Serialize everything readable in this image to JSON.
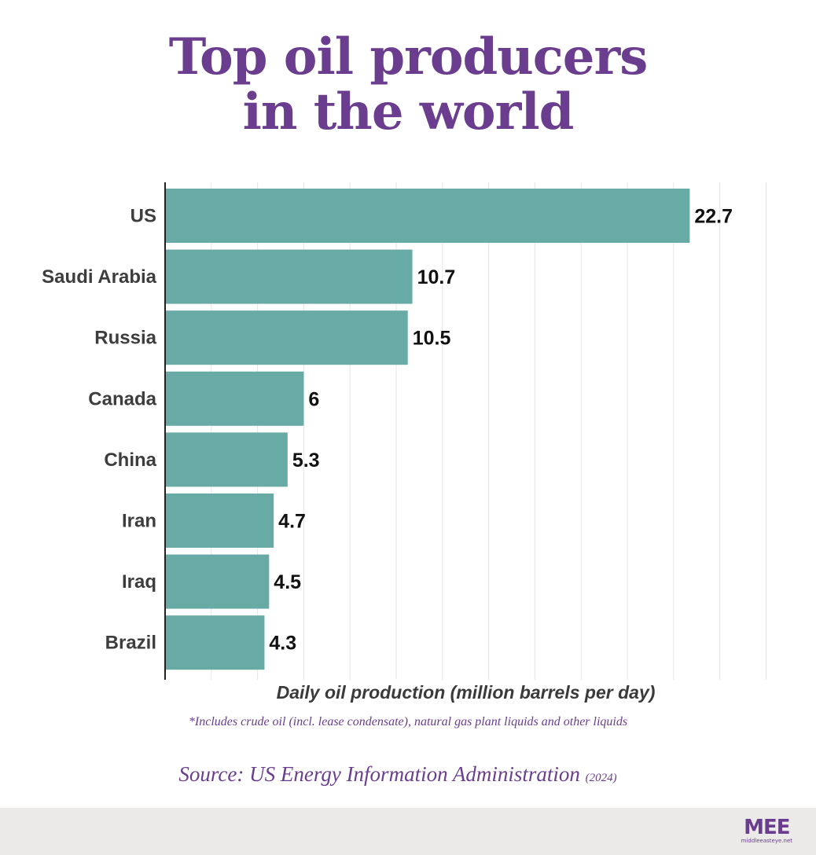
{
  "title_line1": "Top oil producers",
  "title_line2": "in the world",
  "chart_data": {
    "type": "bar",
    "orientation": "horizontal",
    "categories": [
      "US",
      "Saudi Arabia",
      "Russia",
      "Canada",
      "China",
      "Iran",
      "Iraq",
      "Brazil"
    ],
    "values": [
      22.7,
      10.7,
      10.5,
      6,
      5.3,
      4.7,
      4.5,
      4.3
    ],
    "value_labels": [
      "22.7",
      "10.7",
      "10.5",
      "6",
      "5.3",
      "4.7",
      "4.5",
      "4.3"
    ],
    "xlabel": "Daily oil production (million barrels per day)",
    "xlim": [
      0,
      26
    ],
    "grid": true,
    "bar_color": "#67aaa6"
  },
  "footnote": "*Includes crude oil (incl. lease condensate), natural gas plant liquids and other liquids",
  "source": {
    "text": "Source: US Energy Information Administration",
    "year": "(2024)"
  },
  "logo": {
    "mark": "MEE",
    "url": "middleeasteye.net"
  },
  "colors": {
    "title": "#6a3d8f",
    "footer_bg": "#ebeae8"
  }
}
